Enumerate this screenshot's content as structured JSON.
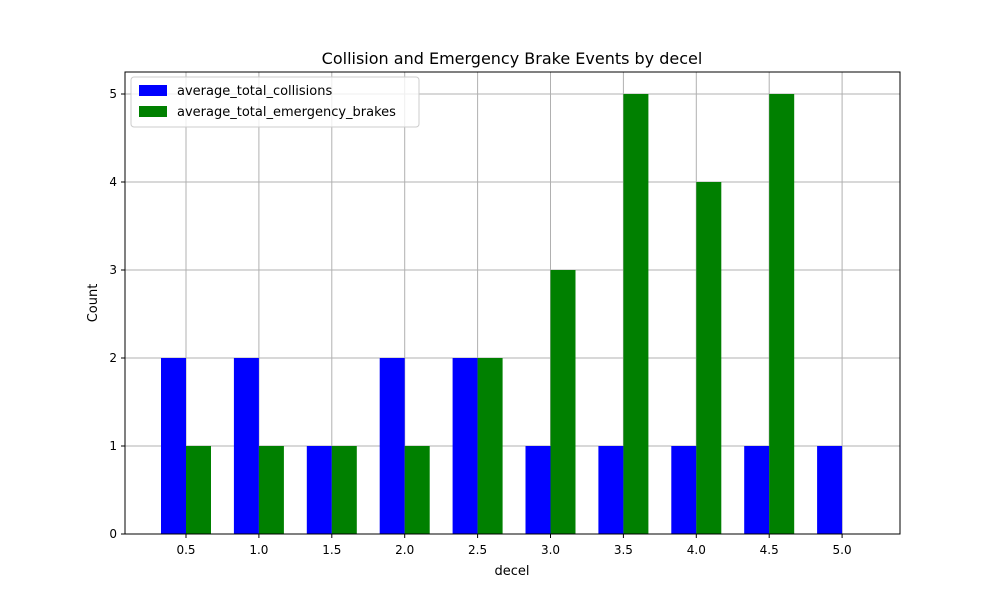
{
  "chart_data": {
    "type": "bar",
    "title": "Collision and Emergency Brake Events by decel",
    "xlabel": "decel",
    "ylabel": "Count",
    "categories": [
      "0.5",
      "1.0",
      "1.5",
      "2.0",
      "2.5",
      "3.0",
      "3.5",
      "4.0",
      "4.5",
      "5.0"
    ],
    "series": [
      {
        "name": "average_total_collisions",
        "color": "#0000ff",
        "values": [
          2,
          2,
          1,
          2,
          2,
          1,
          1,
          1,
          1,
          1
        ]
      },
      {
        "name": "average_total_emergency_brakes",
        "color": "#008000",
        "values": [
          1,
          1,
          1,
          1,
          2,
          3,
          5,
          4,
          5,
          0
        ]
      }
    ],
    "ylim": [
      0,
      5.25
    ],
    "yticks": [
      "0",
      "1",
      "2",
      "3",
      "4",
      "5"
    ],
    "grid": true,
    "legend_position": "top-left"
  }
}
